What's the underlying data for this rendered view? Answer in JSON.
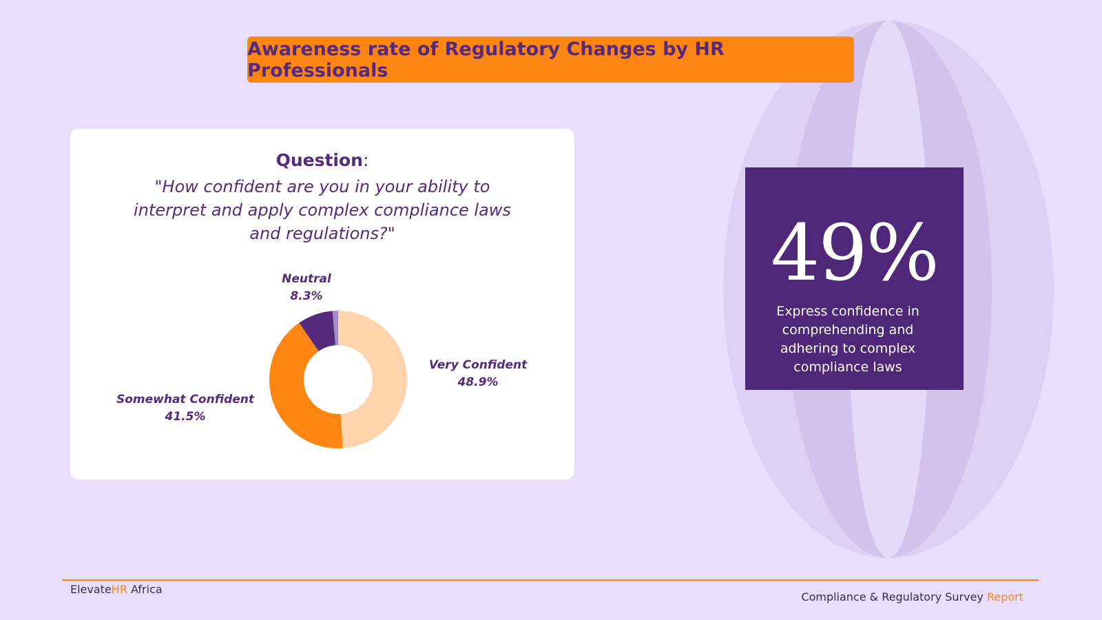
{
  "header": {
    "title": "Awareness rate of Regulatory Changes by HR Professionals"
  },
  "question": {
    "label": "Question",
    "colon": ":",
    "text": "\"How confident are you in your ability to interpret and apply complex compliance laws and regulations?\""
  },
  "chart_data": {
    "type": "donut",
    "categories": [
      "Very Confident",
      "Somewhat Confident",
      "Neutral",
      null
    ],
    "values": [
      48.9,
      41.5,
      8.3,
      1.3
    ],
    "value_labels": [
      "48.9%",
      "41.5%",
      "8.3%",
      null
    ],
    "colors": [
      "#fdd4ab",
      "#fe8512",
      "#55297c",
      "#a48bc6"
    ]
  },
  "stat": {
    "value": "49%",
    "text": "Express confidence in comprehending and adhering to complex compliance laws"
  },
  "footer": {
    "brand": [
      "Elevate",
      "HR",
      " Africa"
    ],
    "report": [
      "Compliance & Regulatory Survey ",
      "Report"
    ]
  }
}
